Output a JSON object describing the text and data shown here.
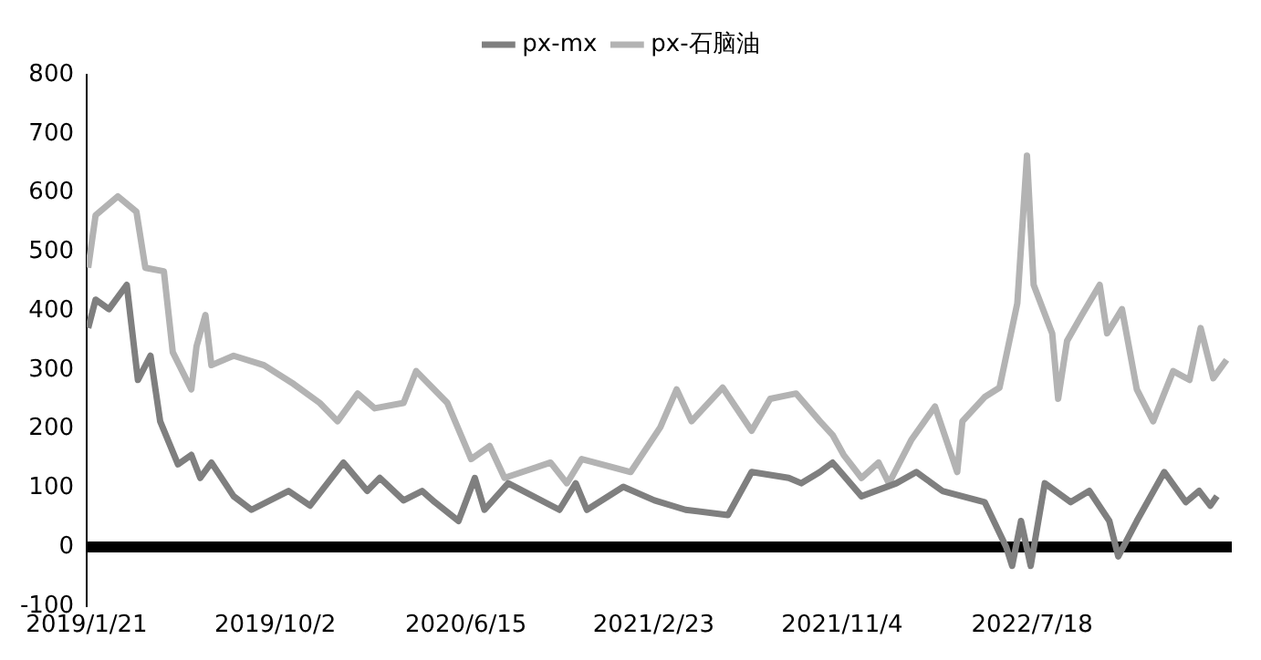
{
  "chart_data": {
    "type": "line",
    "series": [
      {
        "name": "px-mx",
        "color": "#7f7f7f",
        "x": [
          "2019-01-23",
          "2019-02-02",
          "2019-02-20",
          "2019-03-16",
          "2019-03-31",
          "2019-04-17",
          "2019-04-30",
          "2019-05-24",
          "2019-06-11",
          "2019-06-23",
          "2019-07-08",
          "2019-08-07",
          "2019-08-31",
          "2019-10-20",
          "2019-11-18",
          "2020-01-02",
          "2020-02-03",
          "2020-02-20",
          "2020-03-23",
          "2020-04-17",
          "2020-05-04",
          "2020-06-05",
          "2020-06-27",
          "2020-07-10",
          "2020-08-11",
          "2020-10-19",
          "2020-11-10",
          "2020-11-25",
          "2021-01-13",
          "2021-02-24",
          "2021-04-07",
          "2021-06-03",
          "2021-07-05",
          "2021-08-24",
          "2021-09-10",
          "2021-10-05",
          "2021-10-22",
          "2021-11-30",
          "2022-01-16",
          "2022-02-12",
          "2022-03-19",
          "2022-05-15",
          "2022-06-13",
          "2022-06-21",
          "2022-07-03",
          "2022-07-16",
          "2022-08-04",
          "2022-09-08",
          "2022-10-03",
          "2022-10-30",
          "2022-11-11",
          "2022-12-06",
          "2023-01-12",
          "2023-02-10",
          "2023-02-28",
          "2023-03-15",
          "2023-03-24"
        ],
        "values": [
          371,
          419,
          403,
          444,
          283,
          324,
          213,
          140,
          156,
          117,
          143,
          86,
          63,
          95,
          70,
          143,
          95,
          117,
          79,
          95,
          76,
          44,
          117,
          63,
          108,
          63,
          108,
          63,
          102,
          79,
          63,
          54,
          127,
          117,
          108,
          127,
          143,
          86,
          108,
          127,
          95,
          76,
          0,
          -32,
          44,
          -32,
          108,
          76,
          95,
          44,
          -16,
          44,
          127,
          76,
          95,
          70,
          86
        ]
      },
      {
        "name": "px-石脑油",
        "color": "#b3b3b3",
        "x": [
          "2019-01-23",
          "2019-02-02",
          "2019-03-04",
          "2019-03-29",
          "2019-04-10",
          "2019-05-05",
          "2019-05-17",
          "2019-06-11",
          "2019-06-18",
          "2019-06-30",
          "2019-07-08",
          "2019-08-07",
          "2019-09-17",
          "2019-10-27",
          "2019-12-01",
          "2019-12-25",
          "2020-01-21",
          "2020-02-13",
          "2020-03-23",
          "2020-04-09",
          "2020-05-21",
          "2020-06-22",
          "2020-07-17",
          "2020-08-06",
          "2020-10-07",
          "2020-10-29",
          "2020-11-18",
          "2021-01-23",
          "2021-03-04",
          "2021-03-26",
          "2021-04-15",
          "2021-05-27",
          "2021-07-05",
          "2021-07-30",
          "2021-09-03",
          "2021-10-05",
          "2021-10-22",
          "2021-11-06",
          "2021-11-30",
          "2021-12-23",
          "2022-01-06",
          "2022-02-05",
          "2022-03-09",
          "2022-04-08",
          "2022-04-15",
          "2022-05-15",
          "2022-06-04",
          "2022-06-28",
          "2022-07-11",
          "2022-07-20",
          "2022-08-14",
          "2022-08-22",
          "2022-09-03",
          "2022-09-23",
          "2022-10-17",
          "2022-10-27",
          "2022-11-16",
          "2022-12-06",
          "2022-12-28",
          "2023-01-24",
          "2023-02-15",
          "2023-03-02",
          "2023-03-19",
          "2023-04-06"
        ],
        "values": [
          473,
          562,
          594,
          568,
          473,
          467,
          330,
          267,
          340,
          393,
          308,
          324,
          308,
          276,
          244,
          213,
          260,
          235,
          244,
          298,
          244,
          149,
          171,
          117,
          143,
          108,
          149,
          127,
          203,
          267,
          213,
          270,
          197,
          251,
          260,
          213,
          190,
          156,
          117,
          143,
          108,
          181,
          238,
          127,
          213,
          254,
          270,
          413,
          663,
          444,
          362,
          251,
          349,
          393,
          444,
          362,
          403,
          267,
          213,
          298,
          283,
          371,
          286,
          317
        ]
      }
    ],
    "xlim": [
      "2019-01-21",
      "2023-04-13"
    ],
    "xticks": [
      {
        "value": "2019-01-21",
        "label": "2019/1/21"
      },
      {
        "value": "2019-10-02",
        "label": "2019/10/2"
      },
      {
        "value": "2020-06-15",
        "label": "2020/6/15"
      },
      {
        "value": "2021-02-23",
        "label": "2021/2/23"
      },
      {
        "value": "2021-11-04",
        "label": "2021/11/4"
      },
      {
        "value": "2022-07-18",
        "label": "2022/7/18"
      }
    ],
    "ylim": [
      -100,
      800
    ],
    "yticks": [
      -100,
      0,
      100,
      200,
      300,
      400,
      500,
      600,
      700,
      800
    ],
    "ref_lines": [
      {
        "axis": "y",
        "value": 0,
        "color": "#000000"
      }
    ],
    "grid": false,
    "legend": "top",
    "marker": "none",
    "line_style": "solid"
  }
}
